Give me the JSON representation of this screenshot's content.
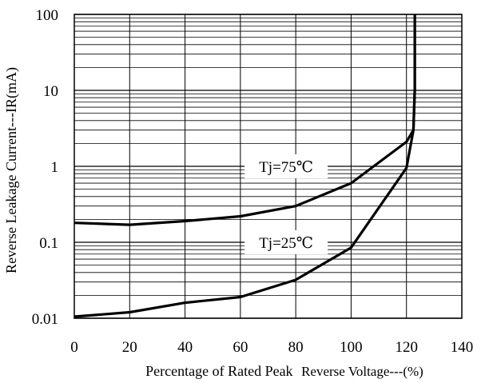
{
  "chart_data": {
    "type": "line",
    "title": "",
    "xlabel_part1": "Percentage of Rated Peak",
    "xlabel_part2": "Reverse Voltage---(%)",
    "ylabel": "Reverse Leakage Current---IR(mA)",
    "xlim": [
      0,
      140
    ],
    "ylim": [
      0.01,
      100
    ],
    "yscale": "log",
    "grid": true,
    "x_ticks": [
      0,
      20,
      40,
      60,
      80,
      100,
      120,
      140
    ],
    "x_tick_labels": [
      "0",
      "20",
      "40",
      "60",
      "80",
      "100",
      "120",
      "140"
    ],
    "y_ticks": [
      0.01,
      0.1,
      1,
      10,
      100
    ],
    "y_tick_labels": [
      "0.01",
      "0.1",
      "1",
      "10",
      "100"
    ],
    "series": [
      {
        "name": "Tj=75℃",
        "label_at": [
          80,
          1
        ],
        "x": [
          0,
          20,
          40,
          60,
          80,
          100,
          120,
          122.5,
          123,
          123,
          123
        ],
        "y": [
          0.18,
          0.17,
          0.19,
          0.22,
          0.3,
          0.6,
          2.1,
          3,
          10,
          50,
          100
        ]
      },
      {
        "name": "Tj=25℃",
        "label_at": [
          80,
          0.1
        ],
        "x": [
          0,
          20,
          40,
          60,
          80,
          100,
          120,
          122.5,
          123,
          123,
          123
        ],
        "y": [
          0.0105,
          0.012,
          0.016,
          0.019,
          0.032,
          0.085,
          0.95,
          3,
          10,
          50,
          100
        ]
      }
    ],
    "color": "#000000"
  }
}
